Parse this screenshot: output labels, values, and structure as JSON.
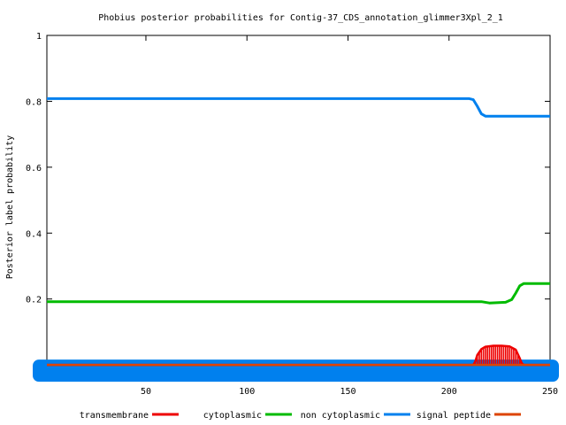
{
  "chart_data": {
    "type": "line",
    "title": "Phobius posterior probabilities for Contig-37_CDS_annotation_glimmer3Xpl_2_1",
    "xlabel": "",
    "ylabel": "Posterior label probability",
    "xlim": [
      1,
      250
    ],
    "ylim": [
      -0.04,
      1
    ],
    "x_ticks": [
      50,
      100,
      150,
      200,
      250
    ],
    "y_ticks": [
      0.2,
      0.4,
      0.6,
      0.8,
      1
    ],
    "legend_position": "bottom",
    "legend": [
      {
        "name": "transmembrane",
        "color": "#ee0000"
      },
      {
        "name": "cytoplasmic",
        "color": "#00bb00"
      },
      {
        "name": "non cytoplasmic",
        "color": "#0080ee"
      },
      {
        "name": "signal peptide",
        "color": "#dd4400"
      }
    ],
    "series": [
      {
        "name": "non cytoplasmic",
        "color": "#0080ee",
        "points": [
          [
            1,
            0.808
          ],
          [
            210,
            0.808
          ],
          [
            212,
            0.805
          ],
          [
            214,
            0.785
          ],
          [
            216,
            0.762
          ],
          [
            218,
            0.755
          ],
          [
            250,
            0.755
          ]
        ]
      },
      {
        "name": "cytoplasmic",
        "color": "#00bb00",
        "points": [
          [
            1,
            0.192
          ],
          [
            216,
            0.192
          ],
          [
            220,
            0.188
          ],
          [
            228,
            0.19
          ],
          [
            231,
            0.198
          ],
          [
            233,
            0.218
          ],
          [
            235,
            0.24
          ],
          [
            237,
            0.247
          ],
          [
            250,
            0.247
          ]
        ]
      },
      {
        "name": "transmembrane",
        "color": "#ee0000",
        "points": [
          [
            1,
            0.0
          ],
          [
            212,
            0.0
          ],
          [
            213,
            0.01
          ],
          [
            214,
            0.03
          ],
          [
            216,
            0.048
          ],
          [
            218,
            0.055
          ],
          [
            222,
            0.058
          ],
          [
            226,
            0.058
          ],
          [
            230,
            0.056
          ],
          [
            233,
            0.046
          ],
          [
            235,
            0.02
          ],
          [
            236,
            0.005
          ],
          [
            237,
            0.0
          ],
          [
            250,
            0.0
          ]
        ]
      },
      {
        "name": "signal peptide",
        "color": "#dd4400",
        "points": [
          [
            1,
            0.0
          ],
          [
            250,
            0.0
          ]
        ]
      }
    ]
  }
}
